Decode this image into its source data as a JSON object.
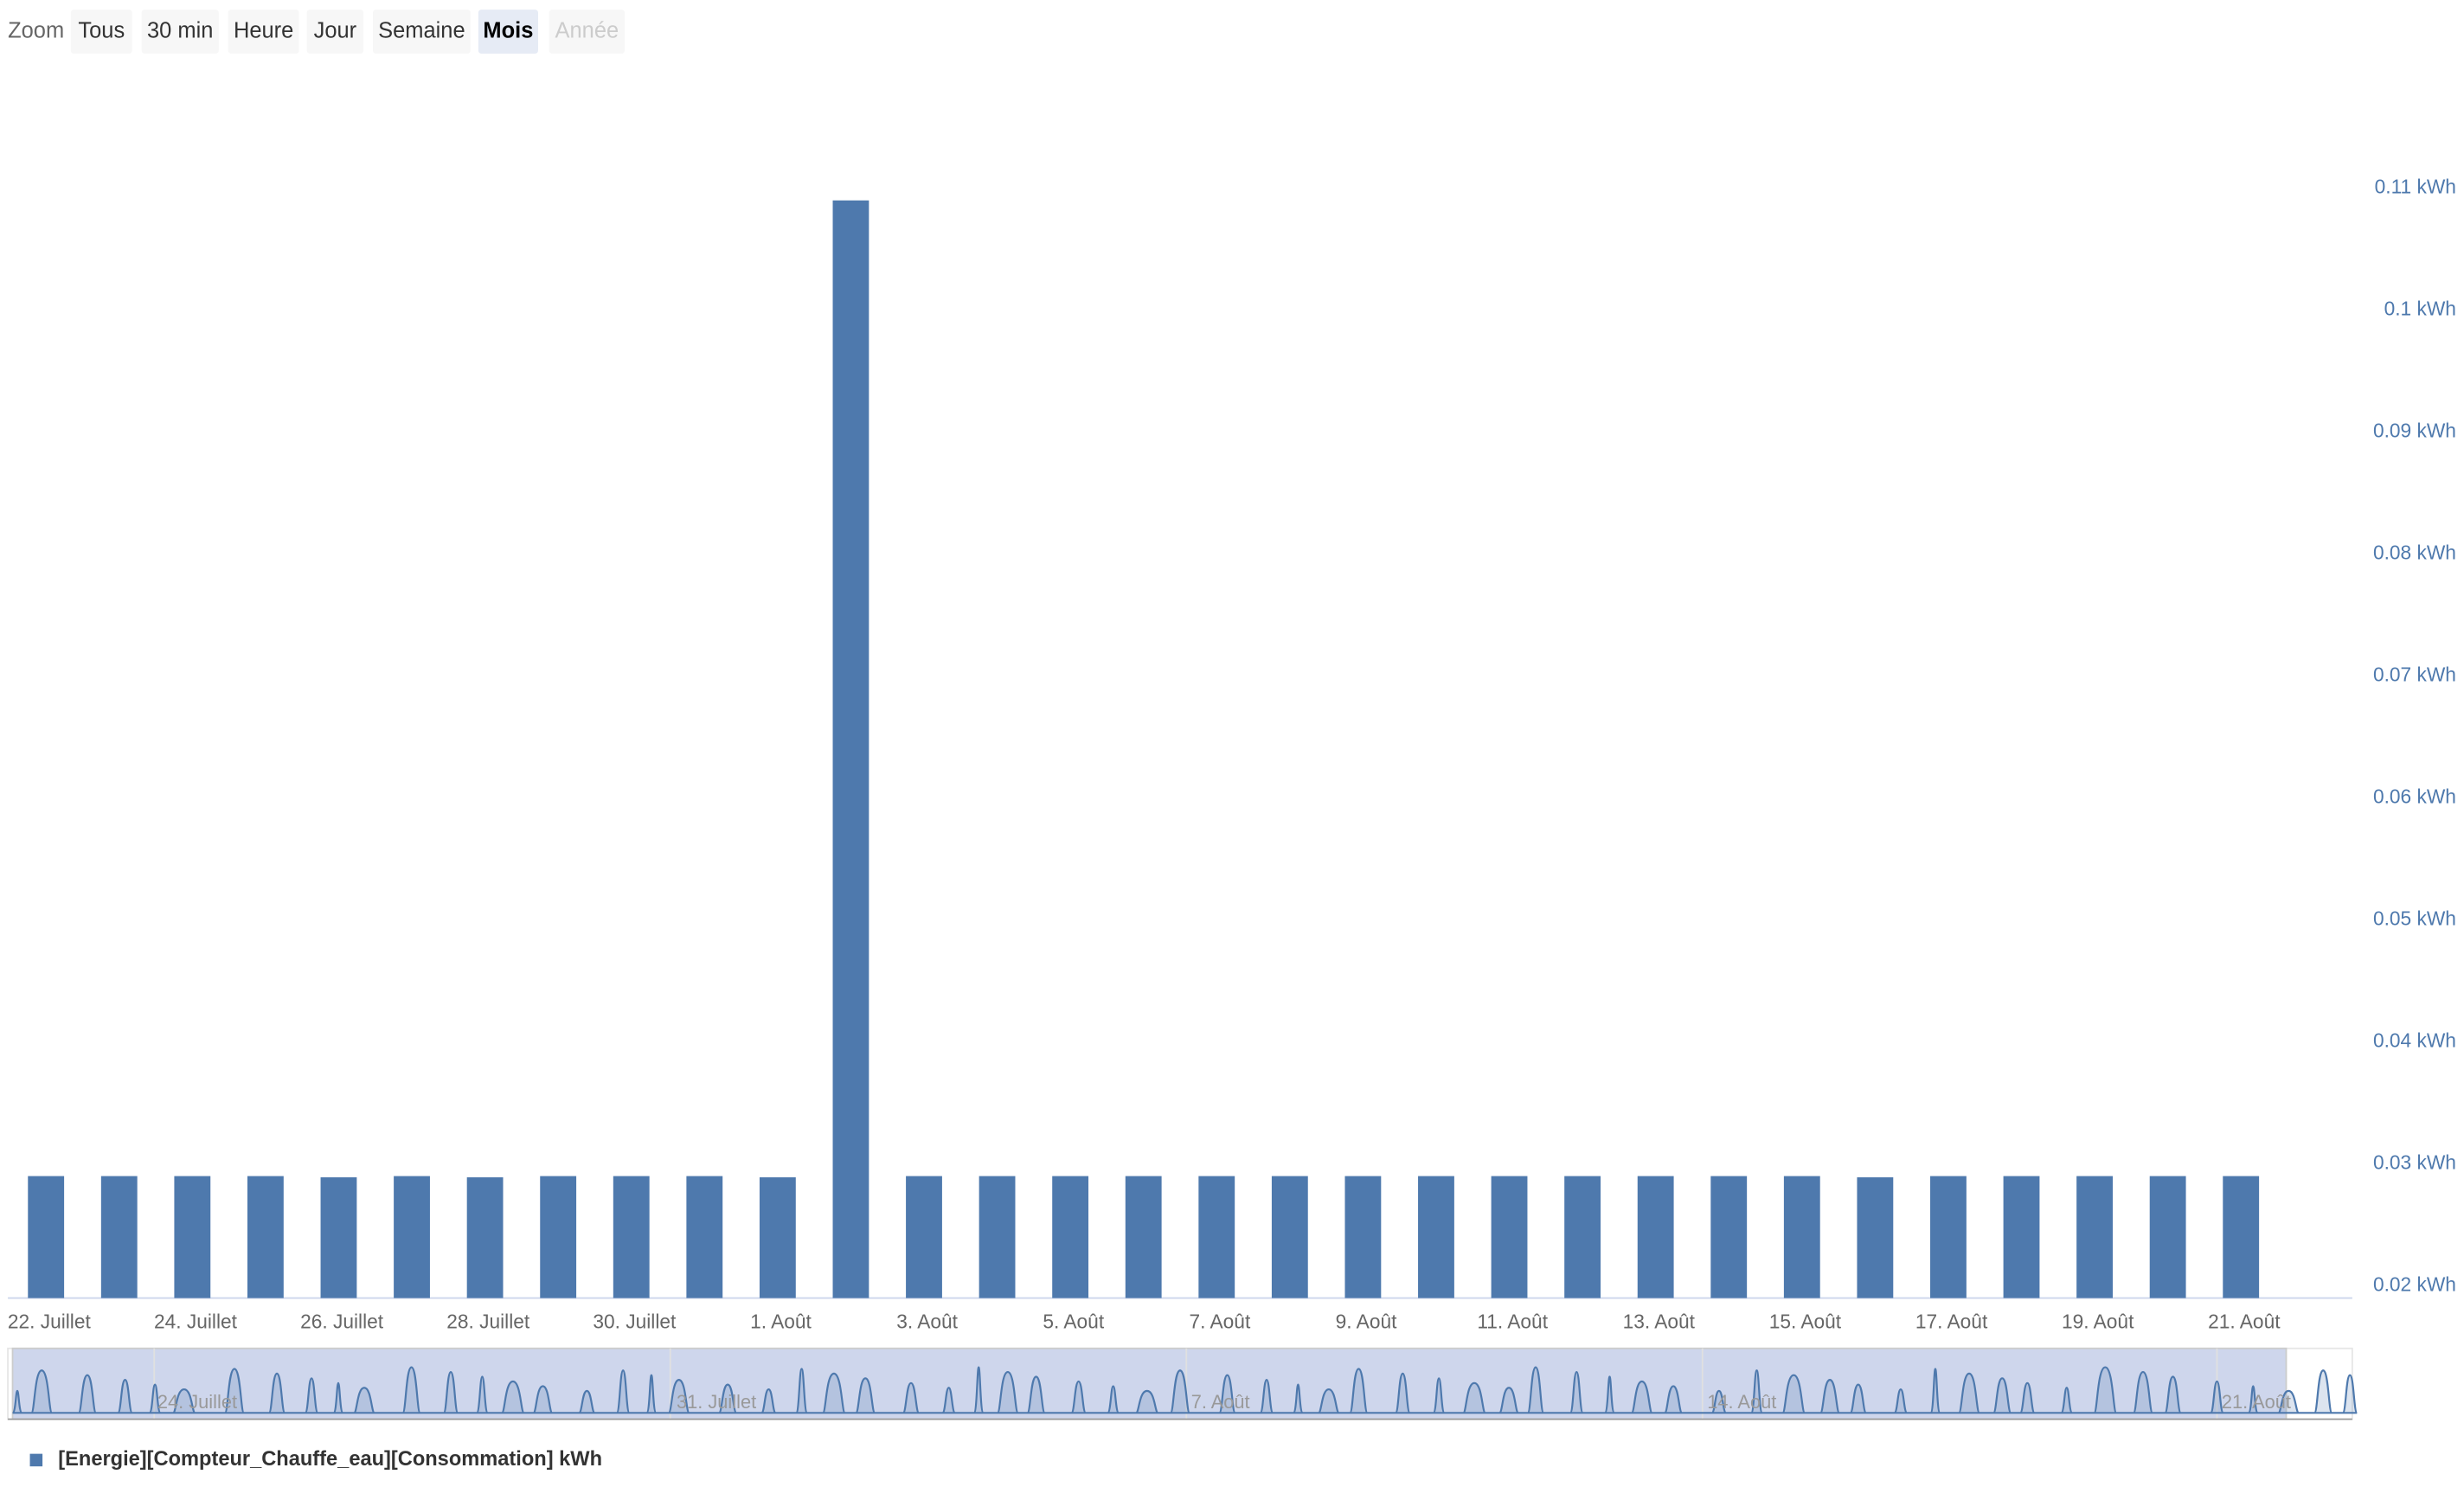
{
  "range_selector": {
    "label": "Zoom",
    "buttons": [
      "Tous",
      "30 min",
      "Heure",
      "Jour",
      "Semaine",
      "Mois",
      "Année"
    ],
    "selected": 5,
    "disabled": [
      6
    ]
  },
  "chart_data": {
    "type": "bar",
    "categories": [
      "22. Juillet",
      null,
      "24. Juillet",
      null,
      "26. Juillet",
      null,
      "28. Juillet",
      null,
      "30. Juillet",
      null,
      "1. Août",
      null,
      "3. Août",
      null,
      "5. Août",
      null,
      "7. Août",
      null,
      "9. Août",
      null,
      "11. Août",
      null,
      "13. Août",
      null,
      "15. Août",
      null,
      "17. Août",
      null,
      "19. Août",
      null,
      "21. Août"
    ],
    "series": [
      {
        "name": "[Energie][Compteur_Chauffe_eau][Consommation] kWh",
        "color": "#4e79ad",
        "values": [
          0.029,
          0.029,
          0.029,
          0.029,
          0.0289,
          0.029,
          0.0289,
          0.029,
          0.029,
          0.029,
          0.0289,
          0.109,
          0.029,
          0.029,
          0.029,
          0.029,
          0.029,
          0.029,
          0.029,
          0.029,
          0.029,
          0.029,
          0.029,
          0.029,
          0.029,
          0.0289,
          0.029,
          0.029,
          0.029,
          0.029,
          0.029
        ]
      }
    ],
    "ylim": [
      0.019,
      0.12
    ],
    "yticks": [
      {
        "value": 0.02,
        "label": "0.02 kWh"
      },
      {
        "value": 0.03,
        "label": "0.03 kWh"
      },
      {
        "value": 0.04,
        "label": "0.04 kWh"
      },
      {
        "value": 0.05,
        "label": "0.05 kWh"
      },
      {
        "value": 0.06,
        "label": "0.06 kWh"
      },
      {
        "value": 0.07,
        "label": "0.07 kWh"
      },
      {
        "value": 0.08,
        "label": "0.08 kWh"
      },
      {
        "value": 0.09,
        "label": "0.09 kWh"
      },
      {
        "value": 0.1,
        "label": "0.1 kWh"
      },
      {
        "value": 0.11,
        "label": "0.11 kWh"
      }
    ]
  },
  "navigator": {
    "labels": [
      "24. Juillet",
      "31. Juillet",
      "7. Août",
      "14. Août",
      "21. Août"
    ]
  }
}
